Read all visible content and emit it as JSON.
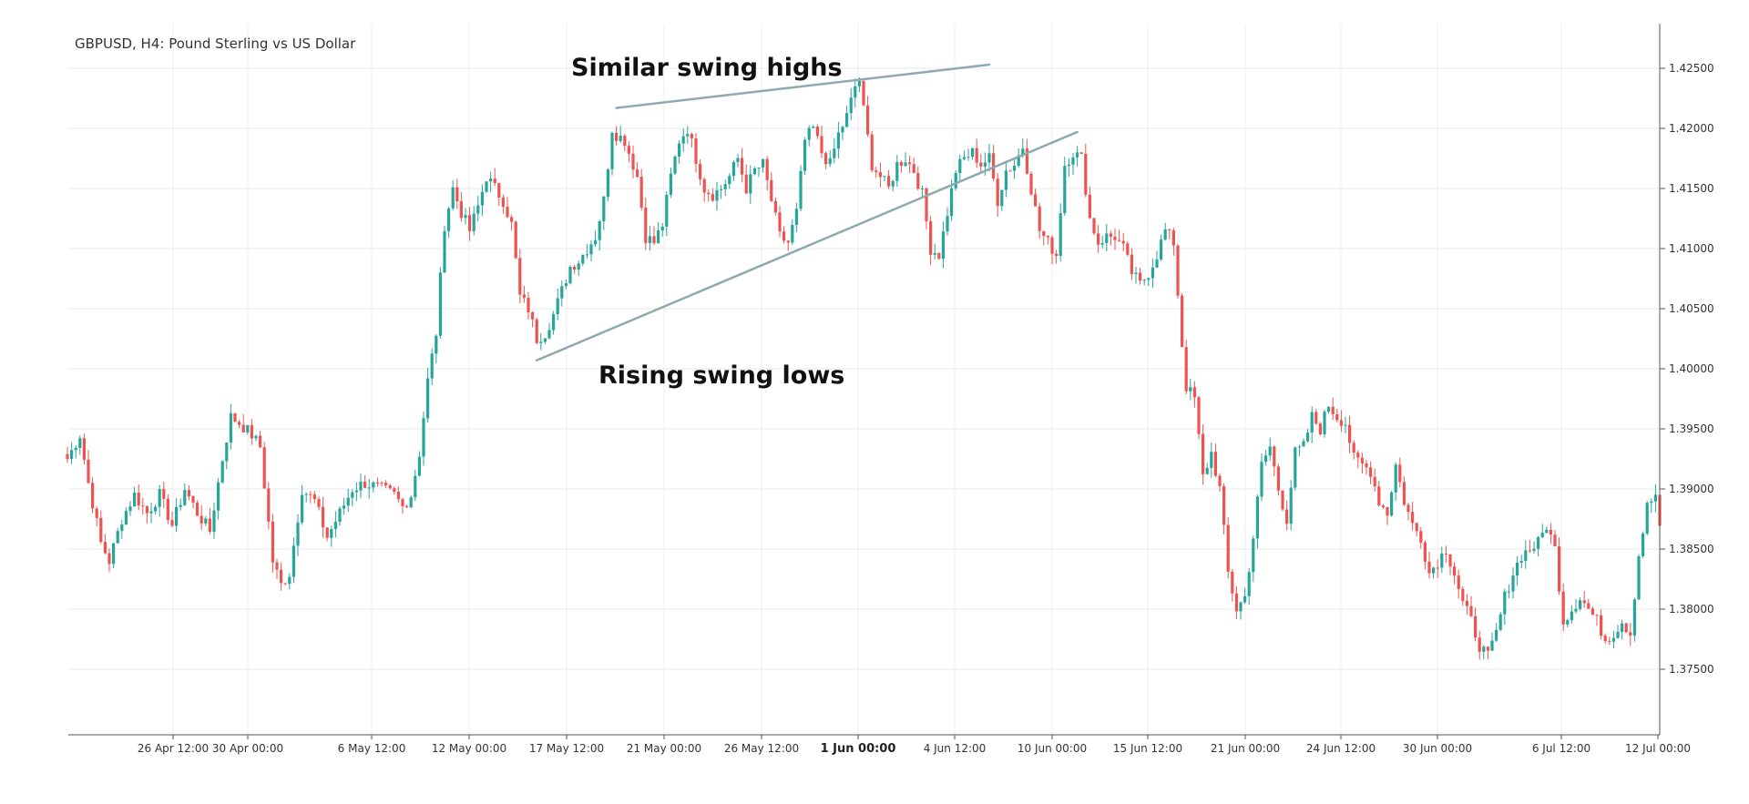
{
  "chart_data": {
    "type": "candlestick",
    "title": "GBPUSD, H4: Pound Sterling vs US Dollar",
    "ylim": [
      1.37,
      1.428
    ],
    "y_ticks": [
      "1.42500",
      "1.42000",
      "1.41500",
      "1.41000",
      "1.40500",
      "1.40000",
      "1.39500",
      "1.39000",
      "1.38500",
      "1.38000",
      "1.37500"
    ],
    "x_ticks": [
      {
        "label": "26 Apr 12:00",
        "bold": false
      },
      {
        "label": "30 Apr 00:00",
        "bold": false
      },
      {
        "label": "6 May 12:00",
        "bold": false
      },
      {
        "label": "12 May 00:00",
        "bold": false
      },
      {
        "label": "17 May 12:00",
        "bold": false
      },
      {
        "label": "21 May 00:00",
        "bold": false
      },
      {
        "label": "26 May 12:00",
        "bold": false
      },
      {
        "label": "1 Jun 00:00",
        "bold": true
      },
      {
        "label": "4 Jun 12:00",
        "bold": false
      },
      {
        "label": "10 Jun 00:00",
        "bold": false
      },
      {
        "label": "15 Jun 12:00",
        "bold": false
      },
      {
        "label": "21 Jun 00:00",
        "bold": false
      },
      {
        "label": "24 Jun 12:00",
        "bold": false
      },
      {
        "label": "30 Jun 00:00",
        "bold": false
      },
      {
        "label": "6 Jul 12:00",
        "bold": false
      },
      {
        "label": "12 Jul 00:00",
        "bold": false
      }
    ],
    "grid": true,
    "up_color": "#26a69a",
    "down_color": "#ef5350",
    "close_path": [
      [
        0,
        1.3925
      ],
      [
        3,
        1.3945
      ],
      [
        5,
        1.3905
      ],
      [
        8,
        1.3855
      ],
      [
        10,
        1.384
      ],
      [
        13,
        1.3875
      ],
      [
        16,
        1.3895
      ],
      [
        19,
        1.388
      ],
      [
        22,
        1.3895
      ],
      [
        25,
        1.387
      ],
      [
        28,
        1.39
      ],
      [
        31,
        1.388
      ],
      [
        34,
        1.3865
      ],
      [
        37,
        1.3925
      ],
      [
        39,
        1.396
      ],
      [
        41,
        1.3955
      ],
      [
        44,
        1.3945
      ],
      [
        46,
        1.3935
      ],
      [
        49,
        1.384
      ],
      [
        51,
        1.382
      ],
      [
        53,
        1.383
      ],
      [
        56,
        1.39
      ],
      [
        59,
        1.389
      ],
      [
        62,
        1.386
      ],
      [
        65,
        1.388
      ],
      [
        68,
        1.39
      ],
      [
        71,
        1.3905
      ],
      [
        75,
        1.39
      ],
      [
        78,
        1.3895
      ],
      [
        80,
        1.3885
      ],
      [
        82,
        1.3895
      ],
      [
        84,
        1.393
      ],
      [
        86,
        1.399
      ],
      [
        88,
        1.403
      ],
      [
        90,
        1.412
      ],
      [
        92,
        1.415
      ],
      [
        94,
        1.413
      ],
      [
        96,
        1.4115
      ],
      [
        98,
        1.4135
      ],
      [
        100,
        1.416
      ],
      [
        102,
        1.415
      ],
      [
        104,
        1.414
      ],
      [
        106,
        1.412
      ],
      [
        108,
        1.406
      ],
      [
        110,
        1.405
      ],
      [
        112,
        1.4025
      ],
      [
        114,
        1.403
      ],
      [
        116,
        1.4045
      ],
      [
        118,
        1.4065
      ],
      [
        120,
        1.4085
      ],
      [
        122,
        1.409
      ],
      [
        124,
        1.41
      ],
      [
        126,
        1.411
      ],
      [
        128,
        1.414
      ],
      [
        130,
        1.42
      ],
      [
        131,
        1.4195
      ],
      [
        133,
        1.419
      ],
      [
        136,
        1.416
      ],
      [
        138,
        1.411
      ],
      [
        140,
        1.4105
      ],
      [
        142,
        1.412
      ],
      [
        144,
        1.416
      ],
      [
        146,
        1.419
      ],
      [
        148,
        1.42
      ],
      [
        150,
        1.4175
      ],
      [
        152,
        1.415
      ],
      [
        154,
        1.4145
      ],
      [
        156,
        1.415
      ],
      [
        158,
        1.416
      ],
      [
        160,
        1.4175
      ],
      [
        162,
        1.415
      ],
      [
        164,
        1.4165
      ],
      [
        166,
        1.417
      ],
      [
        168,
        1.414
      ],
      [
        170,
        1.411
      ],
      [
        172,
        1.4105
      ],
      [
        174,
        1.413
      ],
      [
        176,
        1.419
      ],
      [
        178,
        1.42
      ],
      [
        180,
        1.418
      ],
      [
        182,
        1.417
      ],
      [
        184,
        1.4195
      ],
      [
        186,
        1.421
      ],
      [
        188,
        1.4235
      ],
      [
        189,
        1.424
      ],
      [
        190,
        1.4215
      ],
      [
        192,
        1.417
      ],
      [
        194,
        1.416
      ],
      [
        196,
        1.415
      ],
      [
        198,
        1.417
      ],
      [
        200,
        1.4175
      ],
      [
        202,
        1.4165
      ],
      [
        204,
        1.4145
      ],
      [
        206,
        1.41
      ],
      [
        208,
        1.4095
      ],
      [
        210,
        1.413
      ],
      [
        212,
        1.4165
      ],
      [
        214,
        1.4175
      ],
      [
        216,
        1.418
      ],
      [
        218,
        1.417
      ],
      [
        220,
        1.4175
      ],
      [
        222,
        1.414
      ],
      [
        224,
        1.4165
      ],
      [
        226,
        1.417
      ],
      [
        228,
        1.4185
      ],
      [
        230,
        1.415
      ],
      [
        232,
        1.4115
      ],
      [
        234,
        1.4105
      ],
      [
        236,
        1.4095
      ],
      [
        238,
        1.417
      ],
      [
        240,
        1.418
      ],
      [
        242,
        1.4175
      ],
      [
        244,
        1.4125
      ],
      [
        246,
        1.4105
      ],
      [
        248,
        1.411
      ],
      [
        250,
        1.411
      ],
      [
        252,
        1.41
      ],
      [
        254,
        1.408
      ],
      [
        256,
        1.407
      ],
      [
        258,
        1.408
      ],
      [
        260,
        1.4095
      ],
      [
        262,
        1.4115
      ],
      [
        264,
        1.4105
      ],
      [
        266,
        1.402
      ],
      [
        267,
        1.3985
      ],
      [
        269,
        1.3975
      ],
      [
        271,
        1.391
      ],
      [
        273,
        1.393
      ],
      [
        275,
        1.39
      ],
      [
        277,
        1.383
      ],
      [
        279,
        1.38
      ],
      [
        281,
        1.381
      ],
      [
        283,
        1.386
      ],
      [
        285,
        1.392
      ],
      [
        287,
        1.3935
      ],
      [
        289,
        1.39
      ],
      [
        291,
        1.3875
      ],
      [
        293,
        1.393
      ],
      [
        295,
        1.3935
      ],
      [
        297,
        1.396
      ],
      [
        299,
        1.395
      ],
      [
        301,
        1.397
      ],
      [
        303,
        1.396
      ],
      [
        305,
        1.3955
      ],
      [
        307,
        1.3925
      ],
      [
        309,
        1.392
      ],
      [
        311,
        1.3915
      ],
      [
        313,
        1.389
      ],
      [
        315,
        1.388
      ],
      [
        317,
        1.392
      ],
      [
        319,
        1.389
      ],
      [
        321,
        1.387
      ],
      [
        323,
        1.386
      ],
      [
        325,
        1.383
      ],
      [
        327,
        1.384
      ],
      [
        329,
        1.385
      ],
      [
        331,
        1.383
      ],
      [
        333,
        1.3805
      ],
      [
        335,
        1.379
      ],
      [
        337,
        1.377
      ],
      [
        339,
        1.376
      ],
      [
        341,
        1.378
      ],
      [
        343,
        1.381
      ],
      [
        345,
        1.383
      ],
      [
        347,
        1.3845
      ],
      [
        349,
        1.385
      ],
      [
        351,
        1.3855
      ],
      [
        353,
        1.387
      ],
      [
        355,
        1.385
      ],
      [
        357,
        1.379
      ],
      [
        359,
        1.38
      ],
      [
        361,
        1.381
      ],
      [
        363,
        1.38
      ],
      [
        365,
        1.379
      ],
      [
        367,
        1.3775
      ],
      [
        369,
        1.378
      ],
      [
        371,
        1.379
      ],
      [
        373,
        1.378
      ],
      [
        375,
        1.3845
      ],
      [
        377,
        1.3885
      ],
      [
        379,
        1.3895
      ],
      [
        380,
        1.3865
      ]
    ],
    "annotations": [
      {
        "text": "Similar swing highs"
      },
      {
        "text": "Rising swing lows"
      }
    ],
    "trendlines": [
      {
        "name": "upper-trendline",
        "start": [
          131,
          1.4217
        ],
        "end": [
          220,
          1.4253
        ]
      },
      {
        "name": "lower-trendline",
        "start": [
          112,
          1.4007
        ],
        "end": [
          241,
          1.4197
        ]
      }
    ]
  }
}
